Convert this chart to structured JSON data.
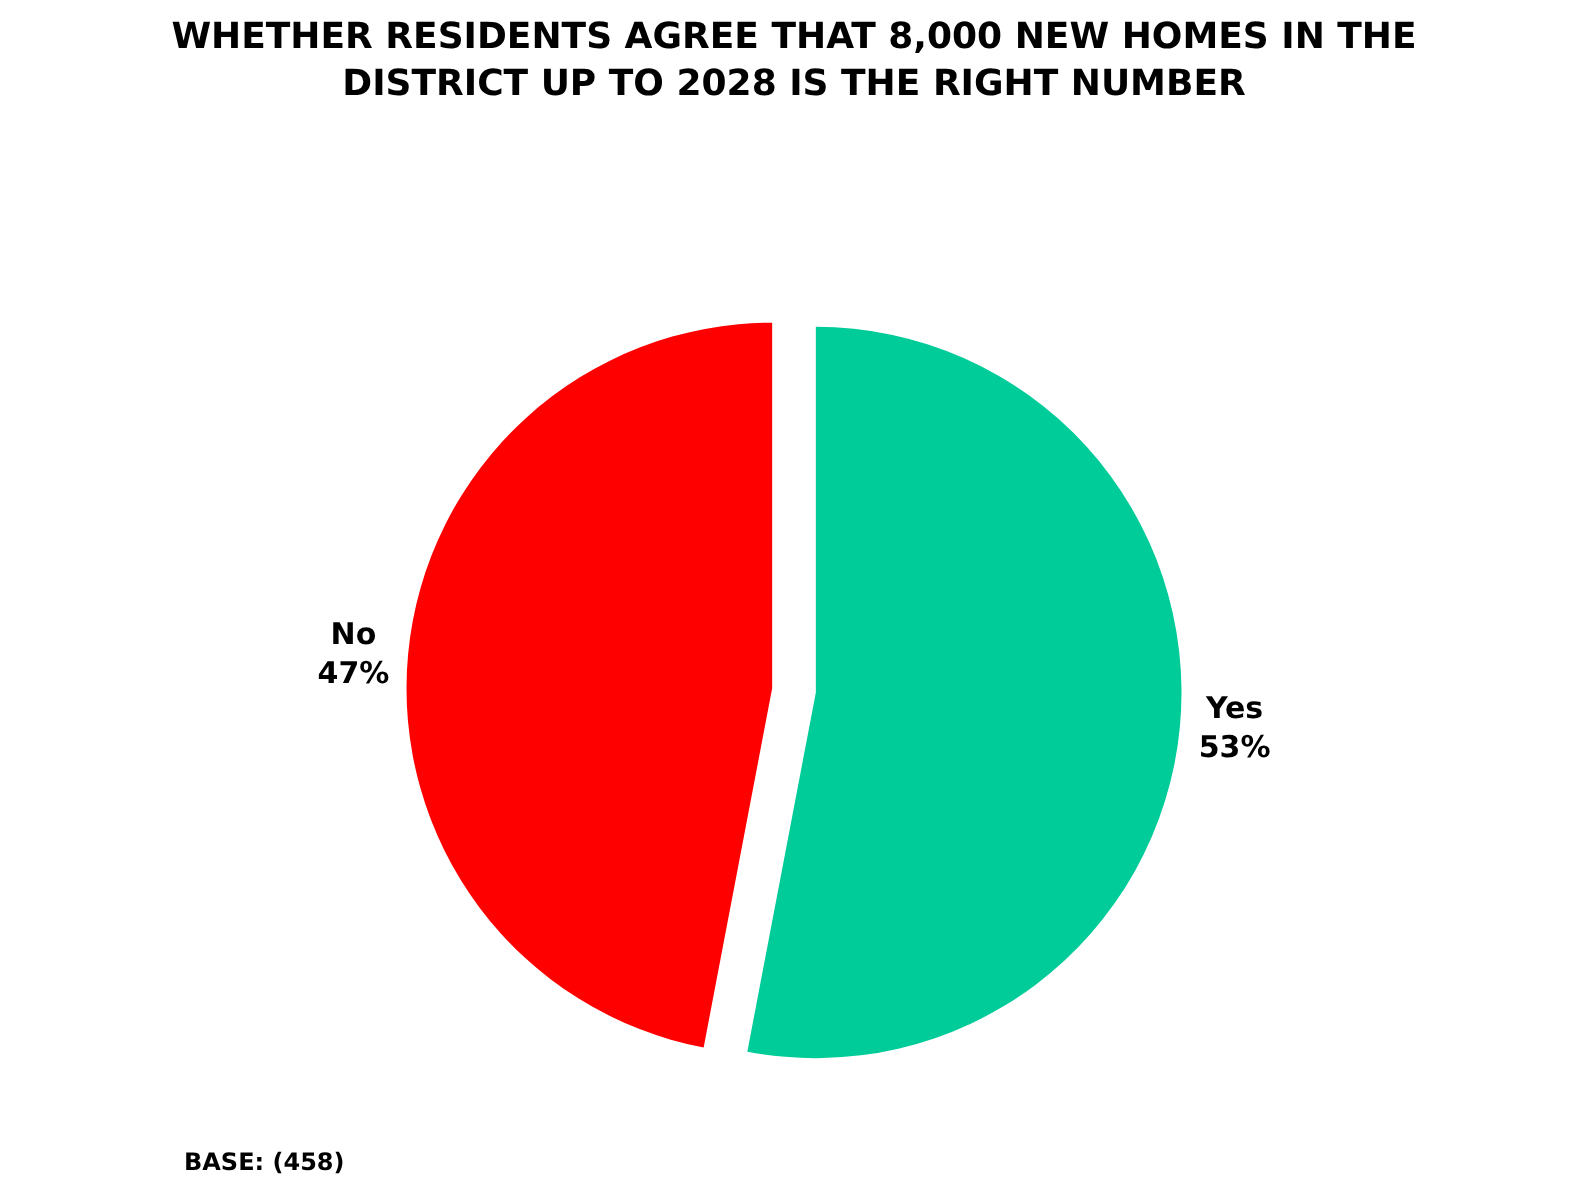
{
  "chart_data": {
    "type": "pie",
    "title": "WHETHER RESIDENTS AGREE THAT 8,000 NEW HOMES IN THE DISTRICT UP TO 2028 IS THE RIGHT NUMBER",
    "categories": [
      "Yes",
      "No"
    ],
    "values": [
      53,
      47
    ],
    "value_labels": [
      "53%",
      "47%"
    ],
    "colors": [
      "#00cc99",
      "#ff0000"
    ],
    "legend": false,
    "annotations": [
      "BASE: (458)"
    ]
  }
}
